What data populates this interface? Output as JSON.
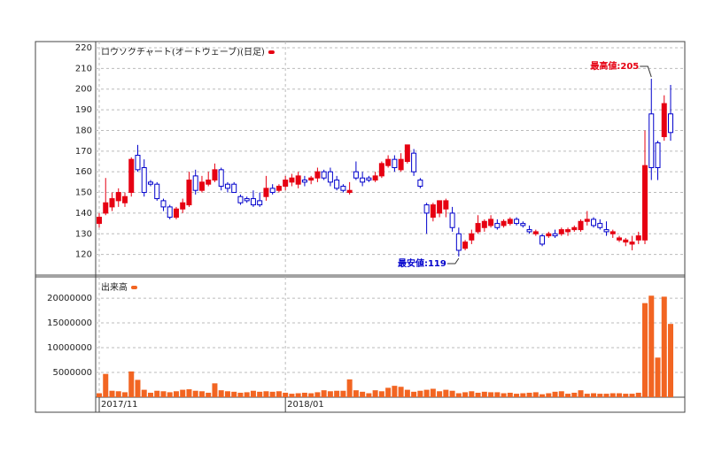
{
  "chart_data": [
    {
      "type": "candlestick",
      "legend": "ロウソクチャート(オートウェーブ)(日足)",
      "up_color": "#e60012",
      "down_color": "#0000cc",
      "ylim": [
        110,
        223
      ],
      "yticks": [
        120,
        130,
        140,
        150,
        160,
        170,
        180,
        190,
        200,
        210,
        220
      ],
      "grid": true,
      "open": [
        135,
        140,
        143,
        146,
        145,
        150,
        168,
        162,
        155,
        154,
        146,
        143,
        138,
        142,
        144,
        158,
        151,
        154,
        156,
        161,
        154,
        154,
        148,
        147,
        147,
        146,
        148,
        152,
        151,
        153,
        155,
        154,
        156,
        156,
        157,
        160,
        160,
        156,
        153,
        150,
        160,
        157,
        157,
        156,
        158,
        163,
        166,
        161,
        165,
        169,
        156,
        144,
        138,
        140,
        142,
        140,
        130,
        123,
        127,
        131,
        133,
        134,
        135,
        134,
        135,
        137,
        135,
        132,
        130,
        129,
        129,
        130,
        130,
        131,
        132,
        132,
        136,
        137,
        135,
        132,
        130,
        127,
        126,
        125,
        127,
        127,
        188,
        174,
        177,
        188
      ],
      "high": [
        140,
        157,
        150,
        152,
        150,
        167,
        173,
        166,
        156,
        155,
        147,
        144,
        143,
        147,
        160,
        161,
        158,
        160,
        164,
        162,
        155,
        155,
        149,
        148,
        151,
        150,
        158,
        154,
        154,
        158,
        159,
        160,
        158,
        158,
        162,
        161,
        162,
        158,
        154,
        155,
        165,
        160,
        158,
        160,
        165,
        168,
        168,
        169,
        173,
        171,
        157,
        145,
        145,
        146,
        147,
        143,
        133,
        127,
        132,
        139,
        137,
        139,
        137,
        137,
        138,
        138,
        136,
        134,
        132,
        130,
        131,
        132,
        133,
        133,
        134,
        137,
        141,
        138,
        137,
        136,
        132,
        129,
        128,
        129,
        131,
        180,
        205,
        175,
        197,
        202
      ],
      "low": [
        133,
        139,
        141,
        143,
        143,
        148,
        160,
        148,
        153,
        146,
        141,
        137,
        137,
        140,
        143,
        149,
        150,
        153,
        155,
        151,
        150,
        150,
        144,
        145,
        143,
        143,
        146,
        149,
        150,
        151,
        153,
        152,
        153,
        154,
        155,
        156,
        153,
        151,
        150,
        149,
        156,
        153,
        155,
        155,
        157,
        162,
        160,
        160,
        164,
        158,
        152,
        130,
        136,
        138,
        138,
        131,
        119,
        122,
        125,
        130,
        131,
        133,
        132,
        133,
        134,
        134,
        133,
        130,
        129,
        124,
        128,
        128,
        129,
        129,
        131,
        131,
        134,
        133,
        132,
        129,
        128,
        126,
        124,
        122,
        125,
        125,
        156,
        156,
        175,
        175
      ],
      "close": [
        138,
        145,
        147,
        150,
        148,
        166,
        161,
        150,
        154,
        147,
        143,
        138,
        142,
        145,
        156,
        151,
        155,
        156,
        161,
        153,
        152,
        150,
        145,
        146,
        144,
        144,
        152,
        150,
        153,
        156,
        157,
        158,
        155,
        157,
        160,
        157,
        155,
        152,
        151,
        151,
        157,
        155,
        156,
        158,
        164,
        166,
        162,
        166,
        173,
        160,
        153,
        140,
        144,
        146,
        146,
        133,
        122,
        126,
        130,
        135,
        136,
        137,
        133,
        136,
        137,
        135,
        134,
        131,
        131,
        125,
        130,
        129,
        132,
        132,
        133,
        136,
        137,
        134,
        133,
        131,
        131,
        128,
        127,
        126,
        129,
        163,
        162,
        162,
        193,
        179
      ],
      "annotations": [
        {
          "text": "最高値:205",
          "value": 205,
          "color": "#e60012"
        },
        {
          "text": "最安値:119",
          "value": 119,
          "color": "#0000cc"
        }
      ]
    },
    {
      "type": "bar",
      "legend": "出来高",
      "color": "#f26522",
      "ylim": [
        0,
        24300000
      ],
      "yticks": [
        5000000,
        10000000,
        15000000,
        20000000
      ],
      "grid": true,
      "categories": [
        "2017/11",
        null,
        null,
        null,
        null,
        null,
        null,
        null,
        null,
        null,
        null,
        null,
        null,
        null,
        null,
        null,
        null,
        null,
        null,
        null,
        null,
        null,
        null,
        null,
        null,
        null,
        null,
        null,
        null,
        "2018/01",
        null,
        null,
        null,
        null,
        null,
        null,
        null,
        null,
        null,
        null,
        null,
        null,
        null,
        null,
        null,
        null,
        null,
        null,
        null,
        null,
        null,
        null,
        null,
        null,
        null,
        null,
        null,
        null,
        null,
        null,
        null,
        null,
        null,
        null,
        null,
        null,
        null,
        null,
        null,
        null,
        null,
        null,
        null,
        null,
        null,
        null,
        null,
        null,
        null,
        null,
        null,
        null,
        null,
        null,
        null,
        null,
        null,
        null,
        null,
        null
      ],
      "values": [
        800000,
        4700000,
        1300000,
        1200000,
        1000000,
        5200000,
        3500000,
        1500000,
        900000,
        1300000,
        1200000,
        1000000,
        1200000,
        1500000,
        1600000,
        1300000,
        1200000,
        900000,
        2800000,
        1400000,
        1200000,
        1100000,
        900000,
        1000000,
        1300000,
        1100000,
        1200000,
        1100000,
        1200000,
        900000,
        700000,
        800000,
        900000,
        800000,
        1000000,
        1400000,
        1200000,
        1300000,
        1300000,
        3600000,
        1400000,
        1100000,
        800000,
        1400000,
        1200000,
        1900000,
        2300000,
        2100000,
        1500000,
        1100000,
        1300000,
        1500000,
        1700000,
        1200000,
        1500000,
        1300000,
        800000,
        1000000,
        1200000,
        900000,
        1100000,
        1000000,
        1000000,
        800000,
        900000,
        700000,
        800000,
        900000,
        1000000,
        600000,
        800000,
        1100000,
        1200000,
        700000,
        900000,
        1400000,
        700000,
        800000,
        700000,
        700000,
        800000,
        800000,
        700000,
        700000,
        900000,
        19000000,
        20500000,
        8000000,
        20300000,
        14800000
      ]
    }
  ]
}
